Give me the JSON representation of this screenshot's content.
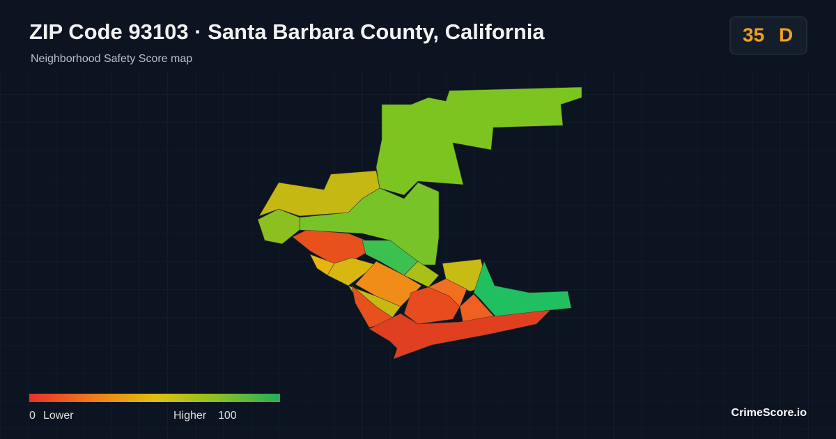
{
  "header": {
    "title": "ZIP Code 93103 · Santa Barbara County, California",
    "subtitle": "Neighborhood Safety Score map"
  },
  "badge": {
    "score": 35,
    "grade": "D"
  },
  "legend": {
    "min": 0,
    "min_label": "Lower",
    "max_label": "Higher",
    "max": 100
  },
  "brand": "CrimeScore.io"
}
